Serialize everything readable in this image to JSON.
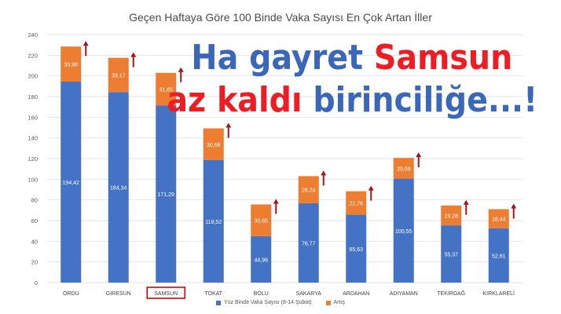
{
  "chart_data": {
    "type": "bar",
    "stacked": true,
    "title": "Geçen Haftaya Göre 100 Binde Vaka Sayısı En Çok Artan İller",
    "categories": [
      "ORDU",
      "GİRESUN",
      "SAMSUN",
      "TOKAT",
      "BOLU",
      "SAKARYA",
      "ARDAHAN",
      "ADIYAMAN",
      "TEKİRDAĞ",
      "KIRKLARELİ"
    ],
    "highlighted_category": "SAMSUN",
    "series": [
      {
        "name": "Yüz Binde Vaka Sayısı (8-14 Şubat)",
        "color": "#4472c4",
        "values": [
          194.42,
          184.34,
          171.29,
          118.52,
          44.96,
          76.77,
          65.63,
          100.55,
          55.37,
          52.61
        ],
        "labels": [
          "194,42",
          "184,34",
          "171,29",
          "118,52",
          "44,96",
          "76,77",
          "65,63",
          "100,55",
          "55,37",
          "52,61"
        ]
      },
      {
        "name": "Artış",
        "color": "#ed7d31",
        "values": [
          33.98,
          33.17,
          31.65,
          30.68,
          30.65,
          26.24,
          22.76,
          20.09,
          19.28,
          18.44
        ],
        "labels": [
          "33,98",
          "33,17",
          "31,65",
          "30,68",
          "30,65",
          "26,24",
          "22,76",
          "20,09",
          "19,28",
          "18,44"
        ]
      }
    ],
    "yticks": [
      0,
      20,
      40,
      60,
      80,
      100,
      120,
      140,
      160,
      180,
      200,
      220,
      240
    ],
    "ylim": [
      0,
      240
    ],
    "grid": true,
    "legend_position": "bottom",
    "arrow_color": "#a0161b"
  },
  "headline": {
    "line1_part1": "Ha gayret ",
    "line1_part2": "Samsun",
    "line2_part1": "az kaldı ",
    "line2_part2": "birinciliğe...!"
  }
}
